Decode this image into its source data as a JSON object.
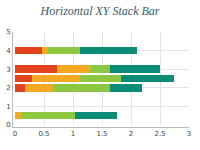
{
  "chart_data": {
    "type": "bar",
    "title": "Horizontal XY Stack Bar",
    "orientation": "horizontal",
    "stacked": true,
    "grid": true,
    "y": [
      0.5,
      2,
      2.5,
      3,
      4
    ],
    "series": [
      {
        "color": "#e2431e",
        "values": [
          0,
          0.17,
          0.29,
          0.72,
          0.47
        ]
      },
      {
        "color": "#f7a823",
        "values": [
          0.12,
          0.48,
          0.83,
          0.57,
          0.1
        ]
      },
      {
        "color": "#8dc63f",
        "values": [
          0.91,
          0.99,
          0.71,
          0.35,
          0.55
        ]
      },
      {
        "color": "#0b8c76",
        "values": [
          0.73,
          0.55,
          0.91,
          0.86,
          0.98
        ]
      }
    ],
    "xlim": [
      0,
      3
    ],
    "xticks": [
      0,
      0.5,
      1,
      1.5,
      2,
      2.5,
      3
    ],
    "ylim": [
      0,
      5
    ],
    "yticks": [
      0,
      1,
      2,
      3,
      4,
      5
    ]
  }
}
